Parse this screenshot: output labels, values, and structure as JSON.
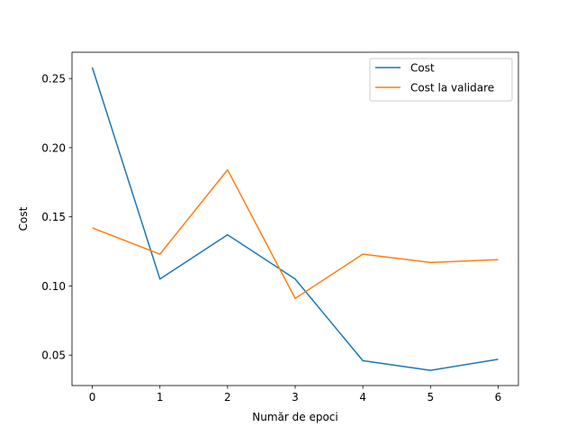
{
  "chart_data": {
    "type": "line",
    "title": "",
    "xlabel": "Număr de epoci",
    "ylabel": "Cost",
    "x": [
      0,
      1,
      2,
      3,
      4,
      5,
      6
    ],
    "xticks": [
      "0",
      "1",
      "2",
      "3",
      "4",
      "5",
      "6"
    ],
    "yticks": [
      0.05,
      0.1,
      0.15,
      0.2,
      0.25
    ],
    "ytick_labels": [
      "0.05",
      "0.10",
      "0.15",
      "0.20",
      "0.25"
    ],
    "xlim": [
      -0.3,
      6.3
    ],
    "ylim": [
      0.028,
      0.269
    ],
    "grid": false,
    "legend_position": "top-right",
    "series": [
      {
        "name": "Cost",
        "color": "#1f77b4",
        "values": [
          0.258,
          0.105,
          0.137,
          0.105,
          0.046,
          0.039,
          0.047
        ]
      },
      {
        "name": "Cost la validare",
        "color": "#ff7f0e",
        "values": [
          0.142,
          0.123,
          0.184,
          0.091,
          0.123,
          0.117,
          0.119
        ]
      }
    ]
  }
}
